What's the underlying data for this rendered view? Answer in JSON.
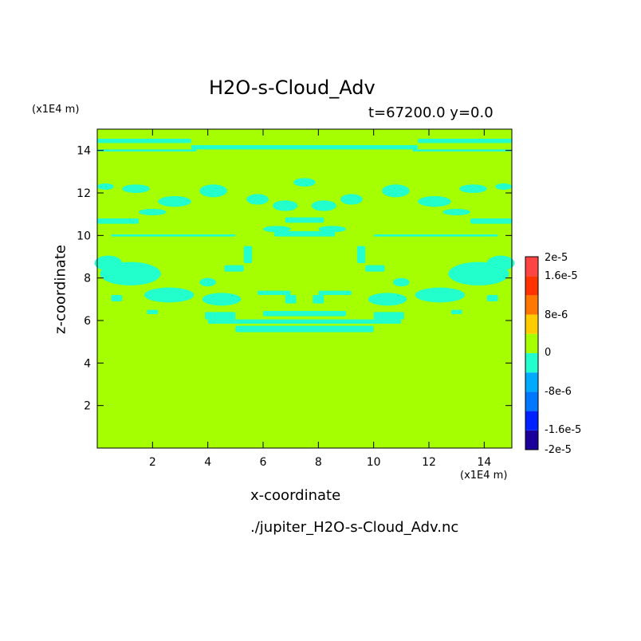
{
  "chart_data": {
    "type": "heatmap",
    "title": "H2O-s-Cloud_Adv",
    "subtitle": "t=67200.0 y=0.0",
    "xlabel": "x-coordinate",
    "ylabel": "z-coordinate",
    "x_unit": "(x1E4 m)",
    "y_unit": "(x1E4 m)",
    "footnote": "./jupiter_H2O-s-Cloud_Adv.nc",
    "xlim": [
      0,
      15
    ],
    "ylim": [
      0,
      15
    ],
    "x_ticks": [
      2,
      4,
      6,
      8,
      10,
      12,
      14
    ],
    "y_ticks": [
      2,
      4,
      6,
      8,
      10,
      12,
      14
    ],
    "background_value": 0,
    "background_color": "#a6ff00",
    "anomaly_color": "#22ffcc",
    "colorbar": {
      "range": [
        -2e-05,
        2e-05
      ],
      "levels": [
        {
          "color": "#1a0099"
        },
        {
          "color": "#0022ff"
        },
        {
          "color": "#0077ff"
        },
        {
          "color": "#00aaff"
        },
        {
          "color": "#22ffcc"
        },
        {
          "color": "#a6ff00"
        },
        {
          "color": "#ffcc00"
        },
        {
          "color": "#ff7700"
        },
        {
          "color": "#ff3300"
        },
        {
          "color": "#ff4444"
        }
      ],
      "labels": [
        "2e-5",
        "1.6e-5",
        "8e-6",
        "0",
        "-8e-6",
        "-1.6e-5",
        "-2e-5"
      ]
    },
    "anomaly_bands": [
      {
        "x": [
          0.0,
          3.4
        ],
        "z": [
          14.35,
          14.55
        ]
      },
      {
        "x": [
          11.6,
          15.0
        ],
        "z": [
          14.35,
          14.55
        ]
      },
      {
        "x": [
          3.4,
          11.6
        ],
        "z": [
          14.05,
          14.25
        ]
      },
      {
        "x": [
          0.0,
          3.6
        ],
        "z": [
          13.95,
          14.05
        ]
      },
      {
        "x": [
          11.4,
          15.0
        ],
        "z": [
          13.95,
          14.05
        ]
      },
      {
        "x": [
          0.0,
          1.5
        ],
        "z": [
          10.55,
          10.8
        ]
      },
      {
        "x": [
          13.5,
          15.0
        ],
        "z": [
          10.55,
          10.8
        ]
      },
      {
        "x": [
          0.5,
          5.0
        ],
        "z": [
          9.95,
          10.05
        ]
      },
      {
        "x": [
          10.0,
          14.5
        ],
        "z": [
          9.95,
          10.05
        ]
      },
      {
        "x": [
          6.4,
          8.6
        ],
        "z": [
          9.95,
          10.2
        ]
      },
      {
        "x": [
          6.8,
          8.2
        ],
        "z": [
          10.6,
          10.85
        ]
      },
      {
        "x": [
          6.0,
          9.0
        ],
        "z": [
          6.2,
          6.45
        ]
      },
      {
        "x": [
          5.0,
          10.0
        ],
        "z": [
          5.45,
          5.75
        ]
      },
      {
        "x": [
          4.0,
          11.0
        ],
        "z": [
          5.85,
          6.05
        ]
      },
      {
        "x": [
          3.9,
          5.0
        ],
        "z": [
          6.05,
          6.4
        ]
      },
      {
        "x": [
          10.0,
          11.1
        ],
        "z": [
          6.05,
          6.4
        ]
      },
      {
        "x": [
          4.6,
          5.3
        ],
        "z": [
          8.3,
          8.6
        ]
      },
      {
        "x": [
          9.7,
          10.4
        ],
        "z": [
          8.3,
          8.6
        ]
      },
      {
        "x": [
          5.3,
          5.6
        ],
        "z": [
          8.7,
          9.5
        ]
      },
      {
        "x": [
          9.4,
          9.7
        ],
        "z": [
          8.7,
          9.5
        ]
      },
      {
        "x": [
          5.8,
          7.0
        ],
        "z": [
          7.2,
          7.4
        ]
      },
      {
        "x": [
          8.0,
          9.2
        ],
        "z": [
          7.2,
          7.4
        ]
      },
      {
        "x": [
          6.8,
          7.2
        ],
        "z": [
          6.8,
          7.2
        ]
      },
      {
        "x": [
          7.8,
          8.2
        ],
        "z": [
          6.8,
          7.2
        ]
      },
      {
        "x": [
          0.5,
          0.9
        ],
        "z": [
          6.9,
          7.2
        ]
      },
      {
        "x": [
          14.1,
          14.5
        ],
        "z": [
          6.9,
          7.2
        ]
      },
      {
        "x": [
          1.8,
          2.2
        ],
        "z": [
          6.3,
          6.5
        ]
      },
      {
        "x": [
          12.8,
          13.2
        ],
        "z": [
          6.3,
          6.5
        ]
      }
    ],
    "anomaly_blobs": [
      {
        "cx": 1.2,
        "cz": 8.2,
        "rx": 1.1,
        "rz": 0.55
      },
      {
        "cx": 13.8,
        "cz": 8.2,
        "rx": 1.1,
        "rz": 0.55
      },
      {
        "cx": 0.4,
        "cz": 8.7,
        "rx": 0.5,
        "rz": 0.35
      },
      {
        "cx": 14.6,
        "cz": 8.7,
        "rx": 0.5,
        "rz": 0.35
      },
      {
        "cx": 2.6,
        "cz": 7.2,
        "rx": 0.9,
        "rz": 0.35
      },
      {
        "cx": 12.4,
        "cz": 7.2,
        "rx": 0.9,
        "rz": 0.35
      },
      {
        "cx": 4.5,
        "cz": 7.0,
        "rx": 0.7,
        "rz": 0.3
      },
      {
        "cx": 10.5,
        "cz": 7.0,
        "rx": 0.7,
        "rz": 0.3
      },
      {
        "cx": 1.4,
        "cz": 12.2,
        "rx": 0.5,
        "rz": 0.2
      },
      {
        "cx": 13.6,
        "cz": 12.2,
        "rx": 0.5,
        "rz": 0.2
      },
      {
        "cx": 2.8,
        "cz": 11.6,
        "rx": 0.6,
        "rz": 0.25
      },
      {
        "cx": 12.2,
        "cz": 11.6,
        "rx": 0.6,
        "rz": 0.25
      },
      {
        "cx": 4.2,
        "cz": 12.1,
        "rx": 0.5,
        "rz": 0.3
      },
      {
        "cx": 10.8,
        "cz": 12.1,
        "rx": 0.5,
        "rz": 0.3
      },
      {
        "cx": 5.8,
        "cz": 11.7,
        "rx": 0.4,
        "rz": 0.25
      },
      {
        "cx": 9.2,
        "cz": 11.7,
        "rx": 0.4,
        "rz": 0.25
      },
      {
        "cx": 6.8,
        "cz": 11.4,
        "rx": 0.45,
        "rz": 0.25
      },
      {
        "cx": 8.2,
        "cz": 11.4,
        "rx": 0.45,
        "rz": 0.25
      },
      {
        "cx": 7.5,
        "cz": 12.5,
        "rx": 0.4,
        "rz": 0.2
      },
      {
        "cx": 2.0,
        "cz": 11.1,
        "rx": 0.5,
        "rz": 0.15
      },
      {
        "cx": 13.0,
        "cz": 11.1,
        "rx": 0.5,
        "rz": 0.15
      },
      {
        "cx": 0.3,
        "cz": 12.3,
        "rx": 0.3,
        "rz": 0.15
      },
      {
        "cx": 14.7,
        "cz": 12.3,
        "rx": 0.3,
        "rz": 0.15
      },
      {
        "cx": 6.5,
        "cz": 10.3,
        "rx": 0.5,
        "rz": 0.15
      },
      {
        "cx": 8.5,
        "cz": 10.3,
        "rx": 0.5,
        "rz": 0.15
      },
      {
        "cx": 4.0,
        "cz": 7.8,
        "rx": 0.3,
        "rz": 0.2
      },
      {
        "cx": 11.0,
        "cz": 7.8,
        "rx": 0.3,
        "rz": 0.2
      }
    ]
  }
}
